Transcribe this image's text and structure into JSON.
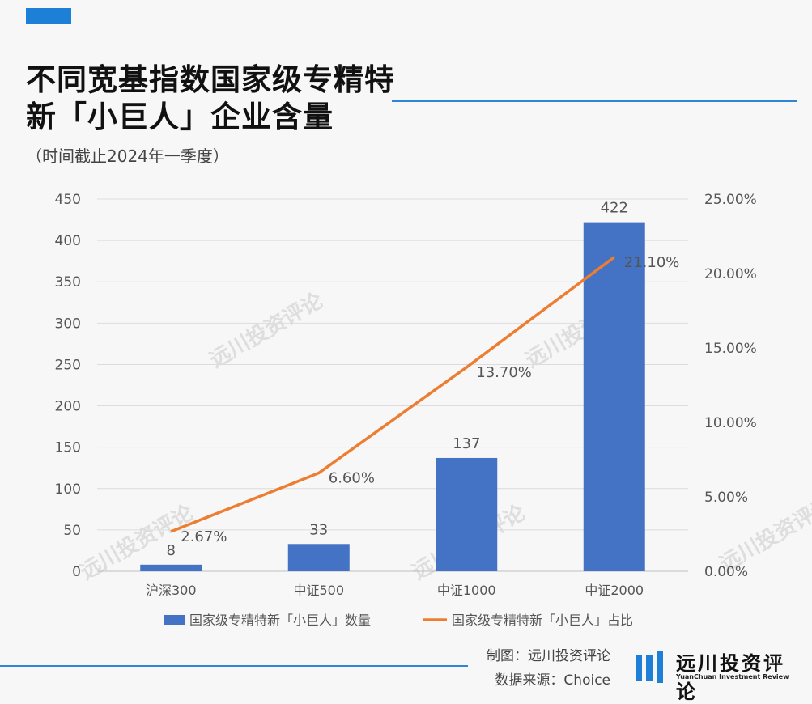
{
  "header": {
    "title_line1": "不同宽基指数国家级专精特",
    "title_line2": "新「小巨人」企业含量",
    "subtitle": "（时间截止2024年一季度）",
    "accent_color": "#1e7fd6"
  },
  "chart_data": {
    "type": "bar+line",
    "title": "不同宽基指数国家级专精特新「小巨人」企业含量",
    "categories": [
      "沪深300",
      "中证500",
      "中证1000",
      "中证2000"
    ],
    "y_left": {
      "ticks": [
        "0",
        "50",
        "100",
        "150",
        "200",
        "250",
        "300",
        "350",
        "400",
        "450"
      ],
      "range": [
        0,
        450
      ]
    },
    "y_right": {
      "ticks": [
        "0.00%",
        "5.00%",
        "10.00%",
        "15.00%",
        "20.00%",
        "25.00%"
      ],
      "range": [
        0,
        25
      ]
    },
    "series": [
      {
        "name": "国家级专精特新「小巨人」数量",
        "type": "bar",
        "axis": "left",
        "color": "#4472c4",
        "values": [
          8,
          33,
          137,
          422
        ],
        "labels": [
          "8",
          "33",
          "137",
          "422"
        ]
      },
      {
        "name": "国家级专精特新「小巨人」占比",
        "type": "line",
        "axis": "right",
        "color": "#ed7d31",
        "values": [
          2.67,
          6.6,
          13.7,
          21.1
        ],
        "labels": [
          "2.67%",
          "6.60%",
          "13.70%",
          "21.10%"
        ]
      }
    ],
    "grid": true,
    "legend": "bottom"
  },
  "footer": {
    "credit_line1": "制图：远川投资评论",
    "credit_line2": "数据来源：Choice",
    "brand_cn": "远川投资评论",
    "brand_en": "YuanChuan Investment Review",
    "watermark_text": "远川投资评论",
    "logo_icon": "bars-logo-icon",
    "brand_color": "#1e7fd6"
  }
}
